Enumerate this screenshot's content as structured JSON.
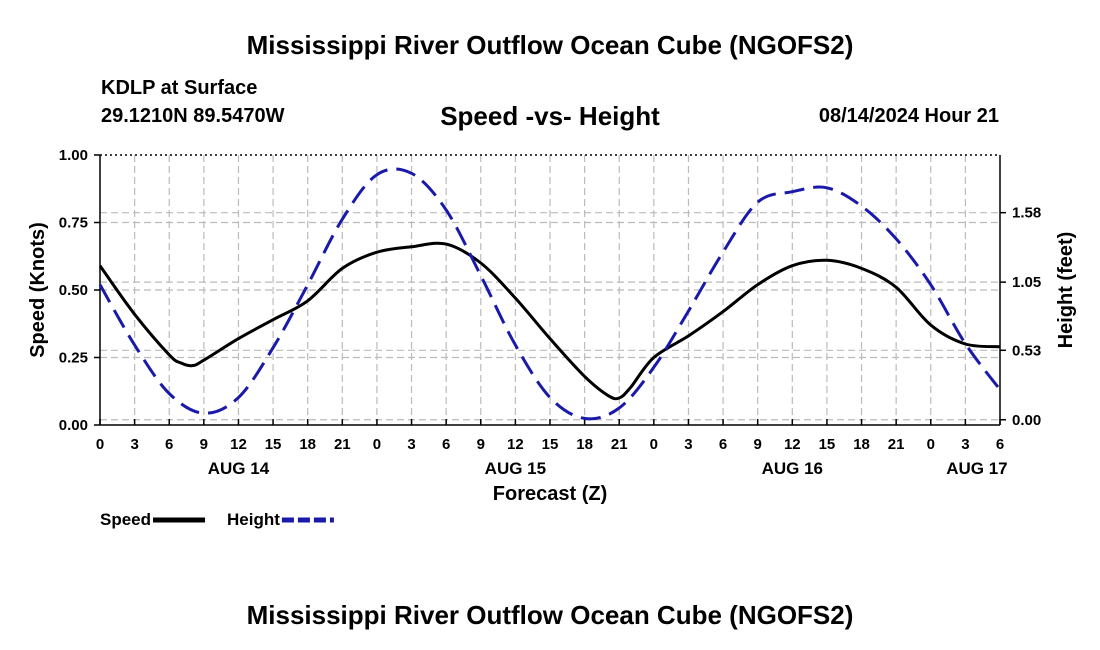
{
  "header": {
    "title": "Mississippi River Outflow Ocean Cube (NGOFS2)",
    "station": "KDLP at Surface",
    "coords": "29.1210N  89.5470W",
    "timestamp": "08/14/2024 Hour 21"
  },
  "footer": {
    "title": "Mississippi River Outflow Ocean Cube (NGOFS2)"
  },
  "chart_data": {
    "type": "line",
    "title": "Speed -vs- Height",
    "xlabel": "Forecast (Z)",
    "ylabel": "Speed (Knots)",
    "y2label": "Height (feet)",
    "x_range_hours": [
      0,
      78
    ],
    "x_ticks": [
      {
        "h": 0,
        "label": "0"
      },
      {
        "h": 3,
        "label": "3"
      },
      {
        "h": 6,
        "label": "6"
      },
      {
        "h": 9,
        "label": "9"
      },
      {
        "h": 12,
        "label": "12"
      },
      {
        "h": 15,
        "label": "15"
      },
      {
        "h": 18,
        "label": "18"
      },
      {
        "h": 21,
        "label": "21"
      },
      {
        "h": 24,
        "label": "0"
      },
      {
        "h": 27,
        "label": "3"
      },
      {
        "h": 30,
        "label": "6"
      },
      {
        "h": 33,
        "label": "9"
      },
      {
        "h": 36,
        "label": "12"
      },
      {
        "h": 39,
        "label": "15"
      },
      {
        "h": 42,
        "label": "18"
      },
      {
        "h": 45,
        "label": "21"
      },
      {
        "h": 48,
        "label": "0"
      },
      {
        "h": 51,
        "label": "3"
      },
      {
        "h": 54,
        "label": "6"
      },
      {
        "h": 57,
        "label": "9"
      },
      {
        "h": 60,
        "label": "12"
      },
      {
        "h": 63,
        "label": "15"
      },
      {
        "h": 66,
        "label": "18"
      },
      {
        "h": 69,
        "label": "21"
      },
      {
        "h": 72,
        "label": "0"
      },
      {
        "h": 75,
        "label": "3"
      },
      {
        "h": 78,
        "label": "6"
      }
    ],
    "date_labels": [
      {
        "h": 12,
        "label": "AUG 14"
      },
      {
        "h": 36,
        "label": "AUG 15"
      },
      {
        "h": 60,
        "label": "AUG 16"
      },
      {
        "h": 76,
        "label": "AUG 17"
      }
    ],
    "y_range": [
      0,
      1
    ],
    "y_ticks": [
      {
        "v": 0,
        "label": "0.00"
      },
      {
        "v": 0.25,
        "label": "0.25"
      },
      {
        "v": 0.5,
        "label": "0.50"
      },
      {
        "v": 0.75,
        "label": "0.75"
      },
      {
        "v": 1,
        "label": "1.00"
      }
    ],
    "y2_range": [
      -0.04,
      2.02
    ],
    "y2_ticks": [
      {
        "v": 0.0,
        "label": "0.00"
      },
      {
        "v": 0.53,
        "label": "0.53"
      },
      {
        "v": 1.05,
        "label": "1.05"
      },
      {
        "v": 1.58,
        "label": "1.58"
      }
    ],
    "series": [
      {
        "name": "Speed",
        "axis": "left",
        "color": "#000000",
        "dash": "solid",
        "points": [
          [
            0,
            0.59
          ],
          [
            3,
            0.41
          ],
          [
            6,
            0.26
          ],
          [
            7,
            0.23
          ],
          [
            8,
            0.22
          ],
          [
            9,
            0.24
          ],
          [
            12,
            0.32
          ],
          [
            15,
            0.39
          ],
          [
            18,
            0.46
          ],
          [
            21,
            0.58
          ],
          [
            24,
            0.64
          ],
          [
            27,
            0.66
          ],
          [
            30,
            0.67
          ],
          [
            33,
            0.6
          ],
          [
            36,
            0.47
          ],
          [
            39,
            0.32
          ],
          [
            42,
            0.18
          ],
          [
            44,
            0.11
          ],
          [
            45,
            0.1
          ],
          [
            46,
            0.14
          ],
          [
            48,
            0.25
          ],
          [
            51,
            0.33
          ],
          [
            54,
            0.42
          ],
          [
            57,
            0.52
          ],
          [
            60,
            0.59
          ],
          [
            63,
            0.61
          ],
          [
            66,
            0.58
          ],
          [
            69,
            0.51
          ],
          [
            72,
            0.37
          ],
          [
            75,
            0.3
          ],
          [
            78,
            0.29
          ]
        ]
      },
      {
        "name": "Height",
        "axis": "right",
        "color": "#1a1aaa",
        "dash": "dashed",
        "points": [
          [
            0,
            1.03
          ],
          [
            3,
            0.57
          ],
          [
            6,
            0.2
          ],
          [
            9,
            0.05
          ],
          [
            12,
            0.17
          ],
          [
            15,
            0.55
          ],
          [
            18,
            1.03
          ],
          [
            21,
            1.53
          ],
          [
            24,
            1.87
          ],
          [
            27,
            1.88
          ],
          [
            30,
            1.6
          ],
          [
            33,
            1.1
          ],
          [
            36,
            0.57
          ],
          [
            39,
            0.17
          ],
          [
            42,
            0.01
          ],
          [
            45,
            0.09
          ],
          [
            48,
            0.4
          ],
          [
            51,
            0.83
          ],
          [
            54,
            1.28
          ],
          [
            57,
            1.66
          ],
          [
            60,
            1.74
          ],
          [
            63,
            1.77
          ],
          [
            66,
            1.63
          ],
          [
            69,
            1.38
          ],
          [
            72,
            1.03
          ],
          [
            75,
            0.58
          ],
          [
            78,
            0.23
          ]
        ]
      }
    ],
    "legend": [
      {
        "name": "Speed",
        "color": "#000000",
        "dash": "solid"
      },
      {
        "name": "Height",
        "color": "#1a1aaa",
        "dash": "dashed"
      }
    ],
    "legend_position": "bottom-left",
    "grid": true
  }
}
